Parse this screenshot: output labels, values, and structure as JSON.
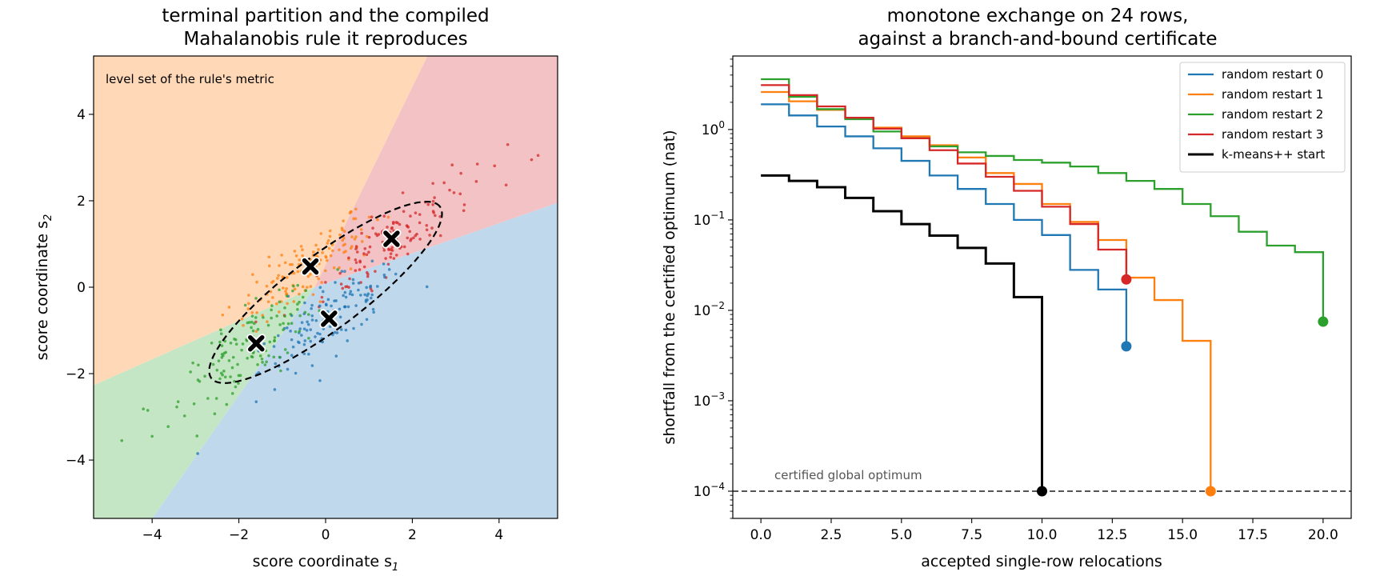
{
  "colors": {
    "blue": "#1f77b4",
    "orange": "#ff7f0e",
    "green": "#2ca02c",
    "red": "#d62728",
    "black": "#000000",
    "region_blue": "#c0d8ec",
    "region_orange": "#ffd9b7",
    "region_green": "#c5e6c4",
    "region_red": "#f2c2c4",
    "dashed_gray": "#555555"
  },
  "chart_data": [
    {
      "type": "scatter",
      "title_lines": [
        "terminal partition and the compiled",
        "Mahalanobis rule it reproduces"
      ],
      "xlabel": "score coordinate s",
      "xlabel_sub": "1",
      "ylabel": "score coordinate s",
      "ylabel_sub": "2",
      "xlim": [
        -5.35,
        5.35
      ],
      "ylim": [
        -5.35,
        5.35
      ],
      "xticks": [
        -4,
        -2,
        0,
        2,
        4
      ],
      "yticks": [
        -4,
        -2,
        0,
        2,
        4
      ],
      "tick_labels": [
        "−4",
        "−2",
        "0",
        "2",
        "4"
      ],
      "annotation": "level set of the rule's metric",
      "regions": [
        {
          "color": "orange",
          "polygon": [
            [
              -5.35,
              5.35
            ],
            [
              2.35,
              5.35
            ],
            [
              -0.25,
              0.0
            ],
            [
              -5.35,
              -2.27
            ]
          ]
        },
        {
          "color": "red",
          "polygon": [
            [
              2.35,
              5.35
            ],
            [
              5.35,
              5.35
            ],
            [
              5.35,
              1.95
            ],
            [
              -0.25,
              0.0
            ]
          ]
        },
        {
          "color": "blue",
          "polygon": [
            [
              5.35,
              1.95
            ],
            [
              5.35,
              -5.35
            ],
            [
              -4.0,
              -5.35
            ],
            [
              -0.25,
              0.0
            ]
          ]
        },
        {
          "color": "green",
          "polygon": [
            [
              -5.35,
              -2.27
            ],
            [
              -0.25,
              0.0
            ],
            [
              -4.0,
              -5.35
            ],
            [
              -5.35,
              -5.35
            ]
          ]
        }
      ],
      "ellipse": {
        "center": [
          0.0,
          -0.12
        ],
        "semi_major": 3.3,
        "semi_minor": 0.85,
        "angle_deg": 37
      },
      "centroids": [
        {
          "cluster": "orange",
          "x": -0.35,
          "y": 0.48
        },
        {
          "cluster": "red",
          "x": 1.52,
          "y": 1.12
        },
        {
          "cluster": "blue",
          "x": 0.08,
          "y": -0.73
        },
        {
          "cluster": "green",
          "x": -1.6,
          "y": -1.3
        }
      ],
      "clusters": [
        {
          "color": "orange",
          "center": [
            -0.35,
            0.48
          ],
          "sd_major": 1.0,
          "sd_minor": 0.3,
          "n": 130
        },
        {
          "color": "red",
          "center": [
            1.52,
            1.12
          ],
          "sd_major": 1.05,
          "sd_minor": 0.3,
          "n": 130
        },
        {
          "color": "blue",
          "center": [
            0.08,
            -0.73
          ],
          "sd_major": 1.0,
          "sd_minor": 0.3,
          "n": 130
        },
        {
          "color": "green",
          "center": [
            -1.6,
            -1.3
          ],
          "sd_major": 1.05,
          "sd_minor": 0.35,
          "n": 130
        }
      ],
      "outliers": [
        {
          "color": "red",
          "x": 4.2,
          "y": 3.3
        },
        {
          "color": "red",
          "x": 4.75,
          "y": 2.95
        },
        {
          "color": "red",
          "x": 4.9,
          "y": 3.05
        },
        {
          "color": "red",
          "x": 3.5,
          "y": 2.85
        },
        {
          "color": "green",
          "x": -4.7,
          "y": -3.55
        },
        {
          "color": "green",
          "x": -4.0,
          "y": -3.45
        },
        {
          "color": "green",
          "x": -4.1,
          "y": -2.85
        },
        {
          "color": "green",
          "x": -3.4,
          "y": -2.65
        },
        {
          "color": "blue",
          "x": -2.95,
          "y": -3.85
        },
        {
          "color": "blue",
          "x": -1.6,
          "y": -2.65
        }
      ]
    },
    {
      "type": "line",
      "step": true,
      "yscale": "log",
      "title_lines": [
        "monotone exchange on 24 rows,",
        "against a branch-and-bound certificate"
      ],
      "xlabel": "accepted single-row relocations",
      "ylabel": "shortfall from the certified optimum (nat)",
      "xlim": [
        -1.0,
        21.0
      ],
      "ylim": [
        5e-05,
        6.5
      ],
      "xticks": [
        0.0,
        2.5,
        5.0,
        7.5,
        10.0,
        12.5,
        15.0,
        17.5,
        20.0
      ],
      "xtick_labels": [
        "0.0",
        "2.5",
        "5.0",
        "7.5",
        "10.0",
        "12.5",
        "15.0",
        "17.5",
        "20.0"
      ],
      "yticks": [
        {
          "value": 0.0001,
          "base": "10",
          "exp": "−4"
        },
        {
          "value": 0.001,
          "base": "10",
          "exp": "−3"
        },
        {
          "value": 0.01,
          "base": "10",
          "exp": "−2"
        },
        {
          "value": 0.1,
          "base": "10",
          "exp": "−1"
        },
        {
          "value": 1,
          "base": "10",
          "exp": "0"
        }
      ],
      "reference_line": {
        "y": 0.0001,
        "label": "certified global optimum"
      },
      "legend_position": "top-right",
      "series": [
        {
          "name": "random restart 0",
          "color": "blue",
          "final_x": 13,
          "final_y": 0.004,
          "values": [
            1.9,
            1.43,
            1.08,
            0.84,
            0.62,
            0.45,
            0.31,
            0.22,
            0.15,
            0.1,
            0.068,
            0.028,
            0.017
          ]
        },
        {
          "name": "random restart 1",
          "color": "orange",
          "final_x": 16,
          "final_y": 0.0001,
          "values": [
            2.6,
            2.05,
            1.65,
            1.32,
            1.05,
            0.84,
            0.67,
            0.49,
            0.33,
            0.25,
            0.15,
            0.095,
            0.06,
            0.023,
            0.013,
            0.0046
          ]
        },
        {
          "name": "random restart 2",
          "color": "green",
          "final_x": 20,
          "final_y": 0.0075,
          "values": [
            3.6,
            2.3,
            1.68,
            1.3,
            0.95,
            0.8,
            0.65,
            0.56,
            0.51,
            0.46,
            0.43,
            0.39,
            0.33,
            0.27,
            0.22,
            0.15,
            0.11,
            0.074,
            0.052,
            0.044
          ]
        },
        {
          "name": "random restart 3",
          "color": "red",
          "final_x": 13,
          "final_y": 0.022,
          "values": [
            3.1,
            2.4,
            1.8,
            1.35,
            1.02,
            0.8,
            0.59,
            0.42,
            0.3,
            0.21,
            0.14,
            0.09,
            0.047
          ]
        },
        {
          "name": "k-means++ start",
          "color": "black",
          "final_x": 10,
          "final_y": 0.0001,
          "values": [
            0.31,
            0.27,
            0.23,
            0.175,
            0.125,
            0.09,
            0.067,
            0.049,
            0.033,
            0.014
          ]
        }
      ]
    }
  ]
}
